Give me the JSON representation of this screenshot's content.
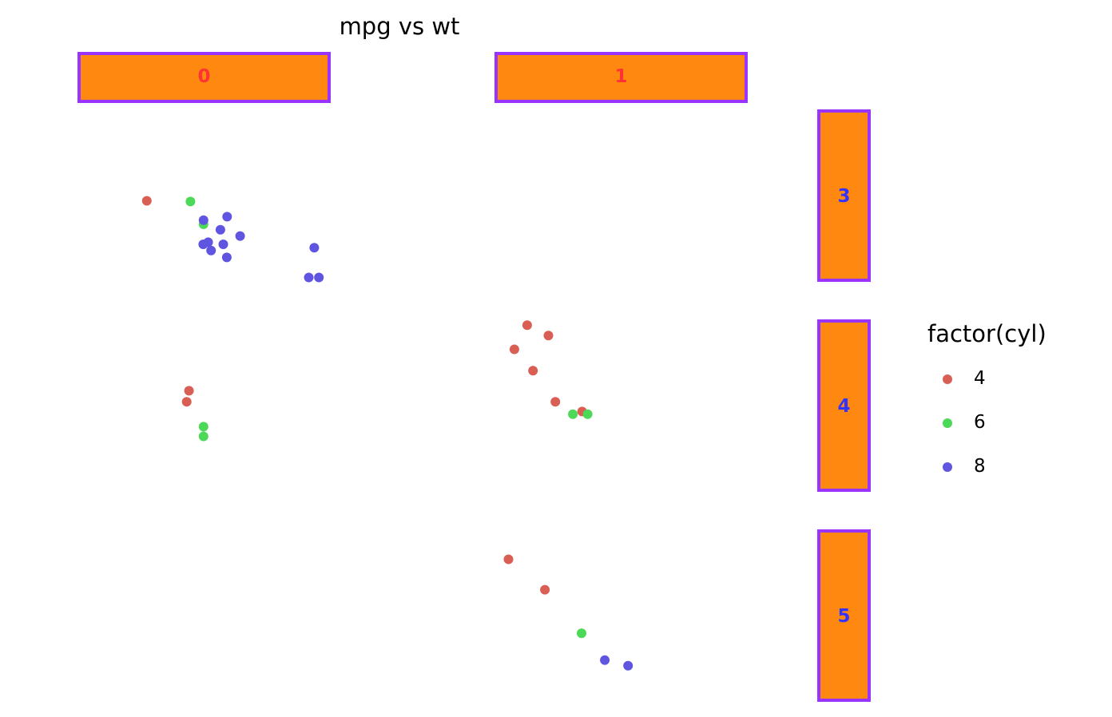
{
  "chart_data": {
    "type": "scatter",
    "title": "mpg vs wt",
    "xlabel": "",
    "ylabel": "",
    "grid": false,
    "facet": {
      "cols": [
        "0",
        "1"
      ],
      "rows": [
        "3",
        "4",
        "5"
      ]
    },
    "legend": {
      "title": "factor(cyl)",
      "placement": "right",
      "entries": [
        {
          "label": "4",
          "color": "#d95f55"
        },
        {
          "label": "6",
          "color": "#4cd957"
        },
        {
          "label": "8",
          "color": "#5f55e0"
        }
      ]
    },
    "xlim": [
      1.3,
      5.6
    ],
    "ylim": [
      10,
      34.5
    ],
    "points": [
      {
        "col": "0",
        "row": "3",
        "x": 2.465,
        "y": 21.5,
        "cyl": "4"
      },
      {
        "col": "0",
        "row": "3",
        "x": 3.215,
        "y": 21.4,
        "cyl": "6"
      },
      {
        "col": "0",
        "row": "3",
        "x": 3.44,
        "y": 18.1,
        "cyl": "6"
      },
      {
        "col": "0",
        "row": "3",
        "x": 3.44,
        "y": 18.7,
        "cyl": "8"
      },
      {
        "col": "0",
        "row": "3",
        "x": 3.57,
        "y": 14.3,
        "cyl": "8"
      },
      {
        "col": "0",
        "row": "3",
        "x": 4.07,
        "y": 16.4,
        "cyl": "8"
      },
      {
        "col": "0",
        "row": "3",
        "x": 3.73,
        "y": 17.3,
        "cyl": "8"
      },
      {
        "col": "0",
        "row": "3",
        "x": 3.78,
        "y": 15.2,
        "cyl": "8"
      },
      {
        "col": "0",
        "row": "3",
        "x": 5.25,
        "y": 10.4,
        "cyl": "8"
      },
      {
        "col": "0",
        "row": "3",
        "x": 5.424,
        "y": 10.4,
        "cyl": "8"
      },
      {
        "col": "0",
        "row": "3",
        "x": 5.345,
        "y": 14.7,
        "cyl": "8"
      },
      {
        "col": "0",
        "row": "3",
        "x": 3.52,
        "y": 15.5,
        "cyl": "8"
      },
      {
        "col": "0",
        "row": "3",
        "x": 3.435,
        "y": 15.2,
        "cyl": "8"
      },
      {
        "col": "0",
        "row": "3",
        "x": 3.84,
        "y": 13.3,
        "cyl": "8"
      },
      {
        "col": "0",
        "row": "3",
        "x": 3.845,
        "y": 19.2,
        "cyl": "8"
      },
      {
        "col": "0",
        "row": "4",
        "x": 3.19,
        "y": 24.4,
        "cyl": "4"
      },
      {
        "col": "0",
        "row": "4",
        "x": 3.15,
        "y": 22.8,
        "cyl": "4"
      },
      {
        "col": "0",
        "row": "4",
        "x": 3.44,
        "y": 19.2,
        "cyl": "6"
      },
      {
        "col": "0",
        "row": "4",
        "x": 3.44,
        "y": 17.8,
        "cyl": "6"
      },
      {
        "col": "1",
        "row": "4",
        "x": 2.32,
        "y": 22.8,
        "cyl": "4"
      },
      {
        "col": "1",
        "row": "4",
        "x": 2.2,
        "y": 32.4,
        "cyl": "4"
      },
      {
        "col": "1",
        "row": "4",
        "x": 1.615,
        "y": 30.4,
        "cyl": "4"
      },
      {
        "col": "1",
        "row": "4",
        "x": 1.835,
        "y": 33.9,
        "cyl": "4"
      },
      {
        "col": "1",
        "row": "4",
        "x": 1.935,
        "y": 27.3,
        "cyl": "4"
      },
      {
        "col": "1",
        "row": "4",
        "x": 2.78,
        "y": 21.4,
        "cyl": "4"
      },
      {
        "col": "1",
        "row": "4",
        "x": 2.62,
        "y": 21.0,
        "cyl": "6"
      },
      {
        "col": "1",
        "row": "4",
        "x": 2.875,
        "y": 21.0,
        "cyl": "6"
      },
      {
        "col": "1",
        "row": "5",
        "x": 2.14,
        "y": 26.0,
        "cyl": "4"
      },
      {
        "col": "1",
        "row": "5",
        "x": 1.513,
        "y": 30.4,
        "cyl": "4"
      },
      {
        "col": "1",
        "row": "5",
        "x": 2.77,
        "y": 19.7,
        "cyl": "6"
      },
      {
        "col": "1",
        "row": "5",
        "x": 3.17,
        "y": 15.8,
        "cyl": "8"
      },
      {
        "col": "1",
        "row": "5",
        "x": 3.57,
        "y": 15.0,
        "cyl": "8"
      }
    ]
  }
}
